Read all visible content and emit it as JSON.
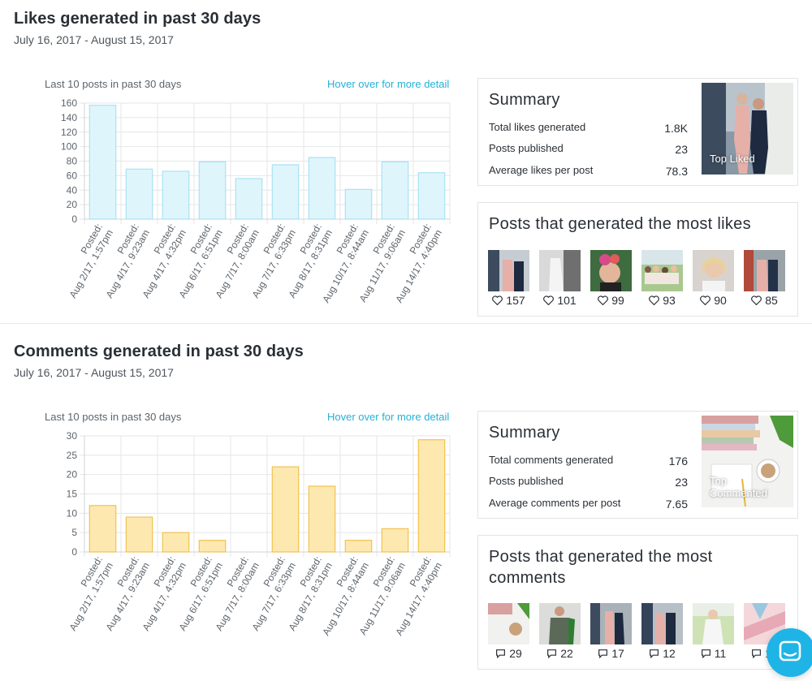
{
  "likes_section": {
    "title": "Likes generated in past 30 days",
    "date_range": "July 16, 2017 - August 15, 2017",
    "chart_caption": "Last 10 posts in past 30 days",
    "hover_hint": "Hover over for more detail",
    "summary": {
      "title": "Summary",
      "rows": [
        {
          "label": "Total likes generated",
          "value": "1.8K"
        },
        {
          "label": "Posts published",
          "value": "23"
        },
        {
          "label": "Average likes per post",
          "value": "78.3"
        }
      ],
      "top_label": "Top Liked"
    },
    "top_posts": {
      "title": "Posts that generated the most likes",
      "counts": [
        "157",
        "101",
        "99",
        "93",
        "90",
        "85"
      ]
    }
  },
  "comments_section": {
    "title": "Comments generated in past 30 days",
    "date_range": "July 16, 2017 - August 15, 2017",
    "chart_caption": "Last 10 posts in past 30 days",
    "hover_hint": "Hover over for more detail",
    "summary": {
      "title": "Summary",
      "rows": [
        {
          "label": "Total comments generated",
          "value": "176"
        },
        {
          "label": "Posts published",
          "value": "23"
        },
        {
          "label": "Average comments per post",
          "value": "7.65"
        }
      ],
      "top_label_1": "Top",
      "top_label_2": "Commented"
    },
    "top_posts": {
      "title": "Posts that generated the most comments",
      "counts": [
        "29",
        "22",
        "17",
        "12",
        "11",
        "10"
      ]
    }
  },
  "colors": {
    "likes_fill": "#dff5fc",
    "likes_stroke": "#a8e2f3",
    "comments_fill": "#fde8b0",
    "comments_stroke": "#f2c24f",
    "accent": "#22b2d9",
    "chat": "#1fb4e6"
  },
  "icons": [
    "heart-icon",
    "comment-icon",
    "chat-icon"
  ],
  "chart_data": [
    {
      "type": "bar",
      "categories": [
        "Posted: Aug 2/17, 1:57pm",
        "Posted: Aug 4/17, 9:23am",
        "Posted: Aug 4/17, 4:32pm",
        "Posted: Aug 6/17, 6:51pm",
        "Posted: Aug 7/17, 8:00am",
        "Posted: Aug 7/17, 6:33pm",
        "Posted: Aug 8/17, 8:31pm",
        "Posted: Aug 10/17, 8:44am",
        "Posted: Aug 11/17, 9:06am",
        "Posted: Aug 14/17, 4:40pm"
      ],
      "values": [
        157,
        69,
        66,
        79,
        56,
        75,
        85,
        41,
        79,
        64
      ],
      "title": "Last 10 posts in past 30 days",
      "xlabel": "",
      "ylabel": "",
      "ylim": [
        0,
        160
      ],
      "yticks": [
        0,
        20,
        40,
        60,
        80,
        100,
        120,
        140,
        160
      ],
      "grid": true
    },
    {
      "type": "bar",
      "categories": [
        "Posted: Aug 2/17, 1:57pm",
        "Posted: Aug 4/17, 9:23am",
        "Posted: Aug 4/17, 4:32pm",
        "Posted: Aug 6/17, 6:51pm",
        "Posted: Aug 7/17, 8:00am",
        "Posted: Aug 7/17, 6:33pm",
        "Posted: Aug 8/17, 8:31pm",
        "Posted: Aug 10/17, 8:44am",
        "Posted: Aug 11/17, 9:06am",
        "Posted: Aug 14/17, 4:40pm"
      ],
      "values": [
        12,
        9,
        5,
        3,
        0,
        22,
        17,
        3,
        6,
        29
      ],
      "title": "Last 10 posts in past 30 days",
      "xlabel": "",
      "ylabel": "",
      "ylim": [
        0,
        30
      ],
      "yticks": [
        0,
        5,
        10,
        15,
        20,
        25,
        30
      ],
      "grid": true
    }
  ]
}
